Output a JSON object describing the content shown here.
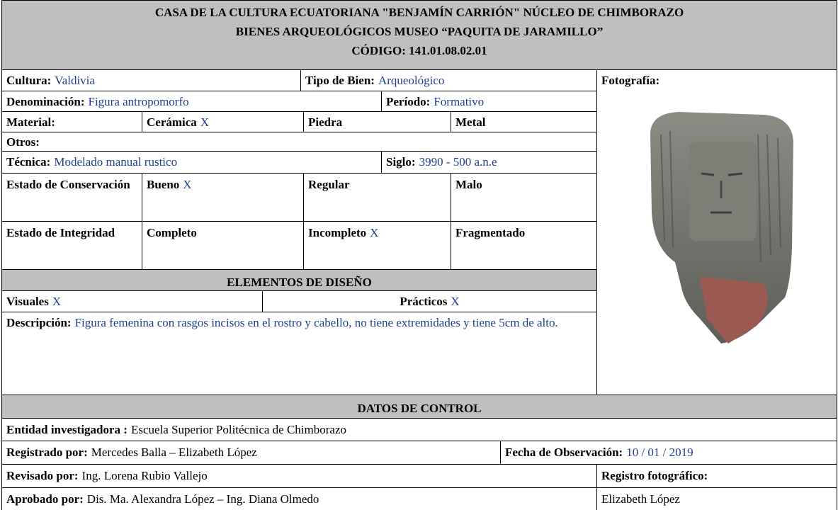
{
  "header": {
    "line1": "CASA DE LA CULTURA ECUATORIANA \"BENJAMÍN CARRIÓN\" NÚCLEO DE CHIMBORAZO",
    "line2": "BIENES ARQUEOLÓGICOS MUSEO “PAQUITA DE JARAMILLO”",
    "line3": "CÓDIGO: 141.01.08.02.01"
  },
  "ficha": {
    "cultura": {
      "label": "Cultura:",
      "value": "Valdivia"
    },
    "tipo_de_bien": {
      "label": "Tipo de Bien:",
      "value": "Arqueológico"
    },
    "fotografia": {
      "label": "Fotografía:"
    },
    "denominacion": {
      "label": "Denominación:",
      "value": "Figura antropomorfo"
    },
    "periodo": {
      "label": "Período:",
      "value": "Formativo"
    },
    "material": {
      "label": "Material:",
      "options": [
        {
          "label": "Cerámica",
          "mark": "X"
        },
        {
          "label": "Piedra"
        },
        {
          "label": "Metal"
        }
      ]
    },
    "otros": {
      "label": "Otros:"
    },
    "tecnica": {
      "label": "Técnica:",
      "value": "Modelado manual rustico"
    },
    "siglo": {
      "label": "Siglo:",
      "value": "3990 - 500 a.n.e"
    },
    "estado_conservacion": {
      "label": "Estado de Conservación",
      "options": [
        {
          "label": "Bueno",
          "mark": "X"
        },
        {
          "label": "Regular"
        },
        {
          "label": "Malo"
        }
      ]
    },
    "estado_integridad": {
      "label": "Estado de Integridad",
      "options": [
        {
          "label": "Completo"
        },
        {
          "label": "Incompleto",
          "mark": "X"
        },
        {
          "label": "Fragmentado"
        }
      ]
    },
    "elementos_de_diseno": {
      "title": "ELEMENTOS DE DISEÑO",
      "visuales": {
        "label": "Visuales",
        "mark": "X"
      },
      "practicos": {
        "label": "Prácticos",
        "mark": "X"
      }
    },
    "descripcion": {
      "label": "Descripción:",
      "value": "Figura femenina con rasgos incisos en el rostro y cabello, no tiene extremidades y tiene 5cm de alto."
    }
  },
  "datos_de_control": {
    "title": "DATOS DE CONTROL",
    "entidad": {
      "label": "Entidad investigadora :",
      "value": "Escuela Superior Politécnica de Chimborazo"
    },
    "registrado_por": {
      "label": "Registrado por:",
      "value": "Mercedes Balla – Elizabeth López"
    },
    "fecha_de_observacion": {
      "label": "Fecha de Observación:",
      "value": "10 / 01 / 2019"
    },
    "revisado_por": {
      "label": "Revisado por:",
      "value": "Ing. Lorena Rubio Vallejo"
    },
    "registro_fotografico": {
      "label": "Registro fotográfico:",
      "value": "Elizabeth López"
    },
    "aprobado_por": {
      "label": "Aprobado por:",
      "value": "Dis. Ma. Alexandra López – Ing. Diana Olmedo"
    }
  }
}
